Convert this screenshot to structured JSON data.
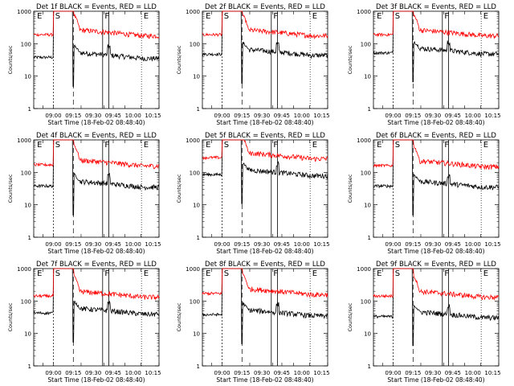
{
  "figure": {
    "xlabel": "Start Time (18-Feb-02 08:48:40)",
    "ylabel": "Counts/sec",
    "y_ticks": [
      "1",
      "10",
      "100",
      "1000"
    ],
    "x_ticks": [
      "09:00",
      "09:15",
      "09:30",
      "09:45",
      "10:00",
      "10:15"
    ],
    "markers": [
      "E",
      "S",
      "F",
      "E"
    ],
    "colors": {
      "events": "#000000",
      "lld": "#ff0000"
    }
  },
  "chart_data": [
    {
      "type": "line",
      "title": "Det 1f BLACK = Events, RED = LLD",
      "x_ticks": [
        "09:00",
        "09:15",
        "09:30",
        "09:45",
        "10:00",
        "10:15"
      ],
      "ylim": [
        1,
        1000
      ],
      "yscale": "log",
      "series": [
        {
          "name": "BLACK = Events",
          "color": "#000000",
          "level": 40
        },
        {
          "name": "RED = LLD",
          "color": "#ff0000",
          "level": 200
        }
      ]
    },
    {
      "type": "line",
      "title": "Det 2f BLACK = Events, RED = LLD",
      "x_ticks": [
        "09:00",
        "09:15",
        "09:30",
        "09:45",
        "10:00",
        "10:15"
      ],
      "ylim": [
        1,
        1000
      ],
      "yscale": "log",
      "series": [
        {
          "name": "BLACK = Events",
          "color": "#000000",
          "level": 50
        },
        {
          "name": "RED = LLD",
          "color": "#ff0000",
          "level": 200
        }
      ]
    },
    {
      "type": "line",
      "title": "Det 3f BLACK = Events, RED = LLD",
      "x_ticks": [
        "09:00",
        "09:15",
        "09:30",
        "09:45",
        "10:00",
        "10:15"
      ],
      "ylim": [
        1,
        1000
      ],
      "yscale": "log",
      "series": [
        {
          "name": "BLACK = Events",
          "color": "#000000",
          "level": 55
        },
        {
          "name": "RED = LLD",
          "color": "#ff0000",
          "level": 200
        }
      ]
    },
    {
      "type": "line",
      "title": "Det 4f BLACK = Events, RED = LLD",
      "x_ticks": [
        "09:00",
        "09:15",
        "09:30",
        "09:45",
        "10:00",
        "10:15"
      ],
      "ylim": [
        1,
        1000
      ],
      "yscale": "log",
      "series": [
        {
          "name": "BLACK = Events",
          "color": "#000000",
          "level": 40
        },
        {
          "name": "RED = LLD",
          "color": "#ff0000",
          "level": 180
        }
      ]
    },
    {
      "type": "line",
      "title": "Det 5f BLACK = Events, RED = LLD",
      "x_ticks": [
        "09:00",
        "09:15",
        "09:30",
        "09:45",
        "10:00",
        "10:15"
      ],
      "ylim": [
        1,
        1000
      ],
      "yscale": "log",
      "series": [
        {
          "name": "BLACK = Events",
          "color": "#000000",
          "level": 90
        },
        {
          "name": "RED = LLD",
          "color": "#ff0000",
          "level": 300
        }
      ]
    },
    {
      "type": "line",
      "title": "Det 6f BLACK = Events, RED = LLD",
      "x_ticks": [
        "09:00",
        "09:15",
        "09:30",
        "09:45",
        "10:00",
        "10:15"
      ],
      "ylim": [
        1,
        1000
      ],
      "yscale": "log",
      "series": [
        {
          "name": "BLACK = Events",
          "color": "#000000",
          "level": 40
        },
        {
          "name": "RED = LLD",
          "color": "#ff0000",
          "level": 170
        }
      ]
    },
    {
      "type": "line",
      "title": "Det 7f BLACK = Events, RED = LLD",
      "x_ticks": [
        "09:00",
        "09:15",
        "09:30",
        "09:45",
        "10:00",
        "10:15"
      ],
      "ylim": [
        1,
        1000
      ],
      "yscale": "log",
      "series": [
        {
          "name": "BLACK = Events",
          "color": "#000000",
          "level": 45
        },
        {
          "name": "RED = LLD",
          "color": "#ff0000",
          "level": 150
        }
      ]
    },
    {
      "type": "line",
      "title": "Det 8f BLACK = Events, RED = LLD",
      "x_ticks": [
        "09:00",
        "09:15",
        "09:30",
        "09:45",
        "10:00",
        "10:15"
      ],
      "ylim": [
        1,
        1000
      ],
      "yscale": "log",
      "series": [
        {
          "name": "BLACK = Events",
          "color": "#000000",
          "level": 40
        },
        {
          "name": "RED = LLD",
          "color": "#ff0000",
          "level": 180
        }
      ]
    },
    {
      "type": "line",
      "title": "Det 9f BLACK = Events, RED = LLD",
      "x_ticks": [
        "09:00",
        "09:15",
        "09:30",
        "09:45",
        "10:00",
        "10:15"
      ],
      "ylim": [
        1,
        1000
      ],
      "yscale": "log",
      "series": [
        {
          "name": "BLACK = Events",
          "color": "#000000",
          "level": 35
        },
        {
          "name": "RED = LLD",
          "color": "#ff0000",
          "level": 150
        }
      ]
    }
  ]
}
